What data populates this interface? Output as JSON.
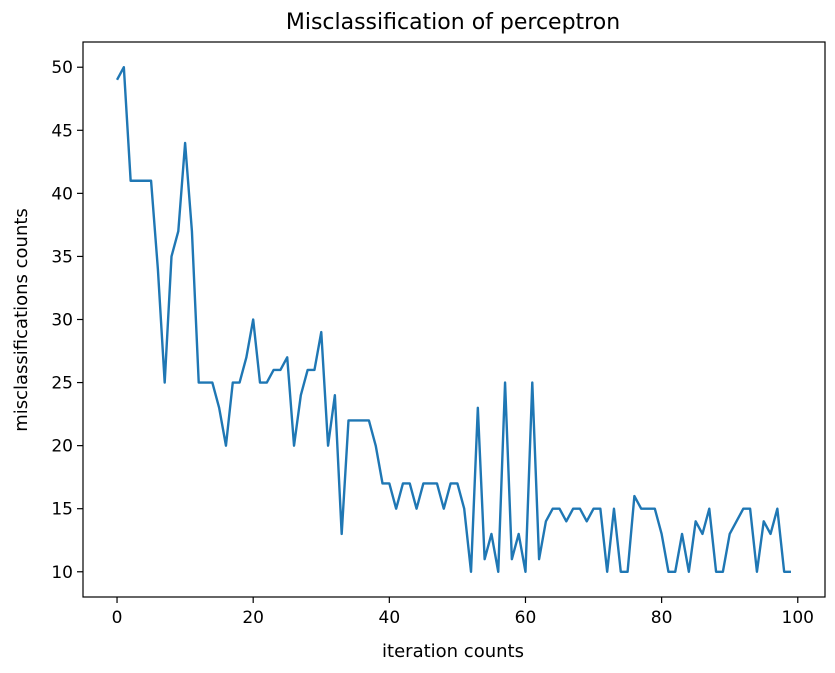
{
  "chart_data": {
    "type": "line",
    "title": "Misclassification of perceptron",
    "xlabel": "iteration counts",
    "ylabel": "misclassifications counts",
    "xlim": [
      -5.0,
      104.0
    ],
    "ylim": [
      8.0,
      52.0
    ],
    "xticks": [
      0,
      20,
      40,
      60,
      80,
      100
    ],
    "yticks": [
      10,
      15,
      20,
      25,
      30,
      35,
      40,
      45,
      50
    ],
    "grid": false,
    "legend": "none",
    "series": [
      {
        "color": "#1f77b4",
        "x": [
          0,
          1,
          2,
          3,
          4,
          5,
          6,
          7,
          8,
          9,
          10,
          11,
          12,
          13,
          14,
          15,
          16,
          17,
          18,
          19,
          20,
          21,
          22,
          23,
          24,
          25,
          26,
          27,
          28,
          29,
          30,
          31,
          32,
          33,
          34,
          35,
          36,
          37,
          38,
          39,
          40,
          41,
          42,
          43,
          44,
          45,
          46,
          47,
          48,
          49,
          50,
          51,
          52,
          53,
          54,
          55,
          56,
          57,
          58,
          59,
          60,
          61,
          62,
          63,
          64,
          65,
          66,
          67,
          68,
          69,
          70,
          71,
          72,
          73,
          74,
          75,
          76,
          77,
          78,
          79,
          80,
          81,
          82,
          83,
          84,
          85,
          86,
          87,
          88,
          89,
          90,
          91,
          92,
          93,
          94,
          95,
          96,
          97,
          98,
          99
        ],
        "values": [
          49,
          50,
          41,
          41,
          41,
          41,
          34,
          25,
          35,
          37,
          44,
          37,
          25,
          25,
          25,
          23,
          20,
          25,
          25,
          27,
          30,
          25,
          25,
          26,
          26,
          27,
          20,
          24,
          26,
          26,
          29,
          20,
          24,
          13,
          22,
          22,
          22,
          22,
          20,
          17,
          17,
          15,
          17,
          17,
          15,
          17,
          17,
          17,
          15,
          17,
          17,
          15,
          10,
          23,
          11,
          13,
          10,
          25,
          11,
          13,
          10,
          25,
          11,
          14,
          15,
          15,
          14,
          15,
          15,
          14,
          15,
          15,
          10,
          15,
          10,
          10,
          16,
          15,
          15,
          15,
          13,
          10,
          10,
          13,
          10,
          14,
          13,
          15,
          10,
          10,
          13,
          14,
          15,
          15,
          10,
          14,
          13,
          15,
          10,
          10
        ]
      }
    ]
  }
}
